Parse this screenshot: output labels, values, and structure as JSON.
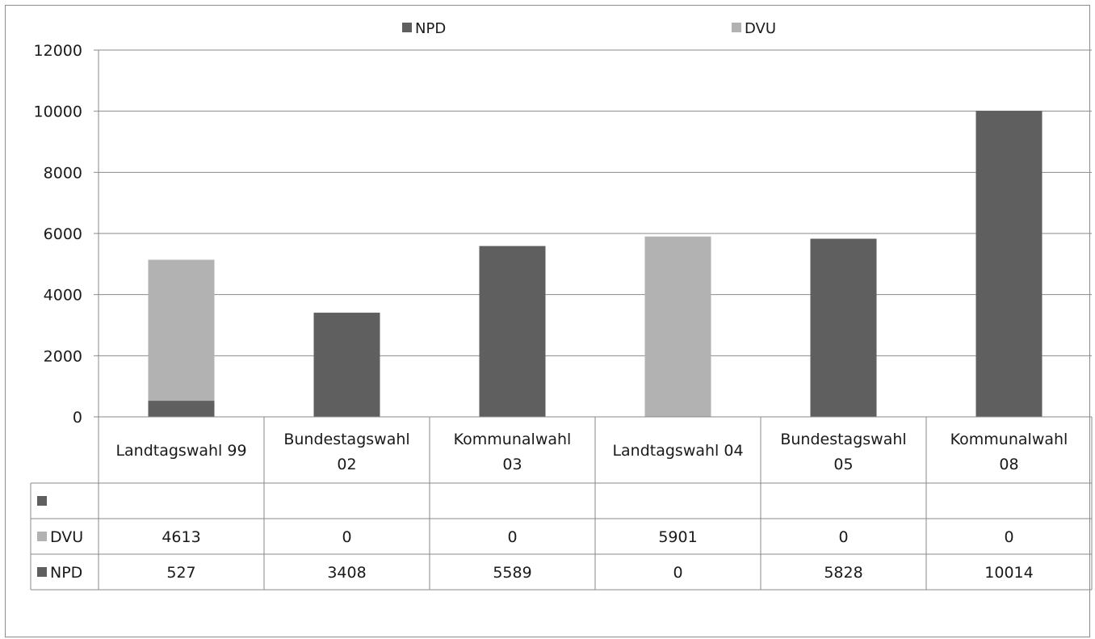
{
  "chart_data": {
    "type": "bar",
    "stacked": true,
    "categories": [
      [
        "Landtagswahl 99"
      ],
      [
        "Bundestagswahl",
        "02"
      ],
      [
        "Kommunalwahl",
        "03"
      ],
      [
        "Landtagswahl 04"
      ],
      [
        "Bundestagswahl",
        "05"
      ],
      [
        "Kommunalwahl",
        "08"
      ]
    ],
    "series": [
      {
        "name": "NPD",
        "color": "#5f5f5f",
        "values": [
          527,
          3408,
          5589,
          0,
          5828,
          10014
        ]
      },
      {
        "name": "DVU",
        "color": "#b2b2b2",
        "values": [
          4613,
          0,
          0,
          5901,
          0,
          0
        ]
      }
    ],
    "ylim": [
      0,
      12000
    ],
    "yticks": [
      0,
      2000,
      4000,
      6000,
      8000,
      10000,
      12000
    ],
    "grid": true,
    "legend": "top",
    "data_table": {
      "rows": [
        {
          "label": "",
          "color": "#5f5f5f",
          "values": [
            "",
            "",
            "",
            "",
            "",
            ""
          ]
        },
        {
          "label": "DVU",
          "color": "#b2b2b2",
          "values": [
            "4613",
            "0",
            "0",
            "5901",
            "0",
            "0"
          ]
        },
        {
          "label": "NPD",
          "color": "#5f5f5f",
          "values": [
            "527",
            "3408",
            "5589",
            "0",
            "5828",
            "10014"
          ]
        }
      ]
    }
  }
}
